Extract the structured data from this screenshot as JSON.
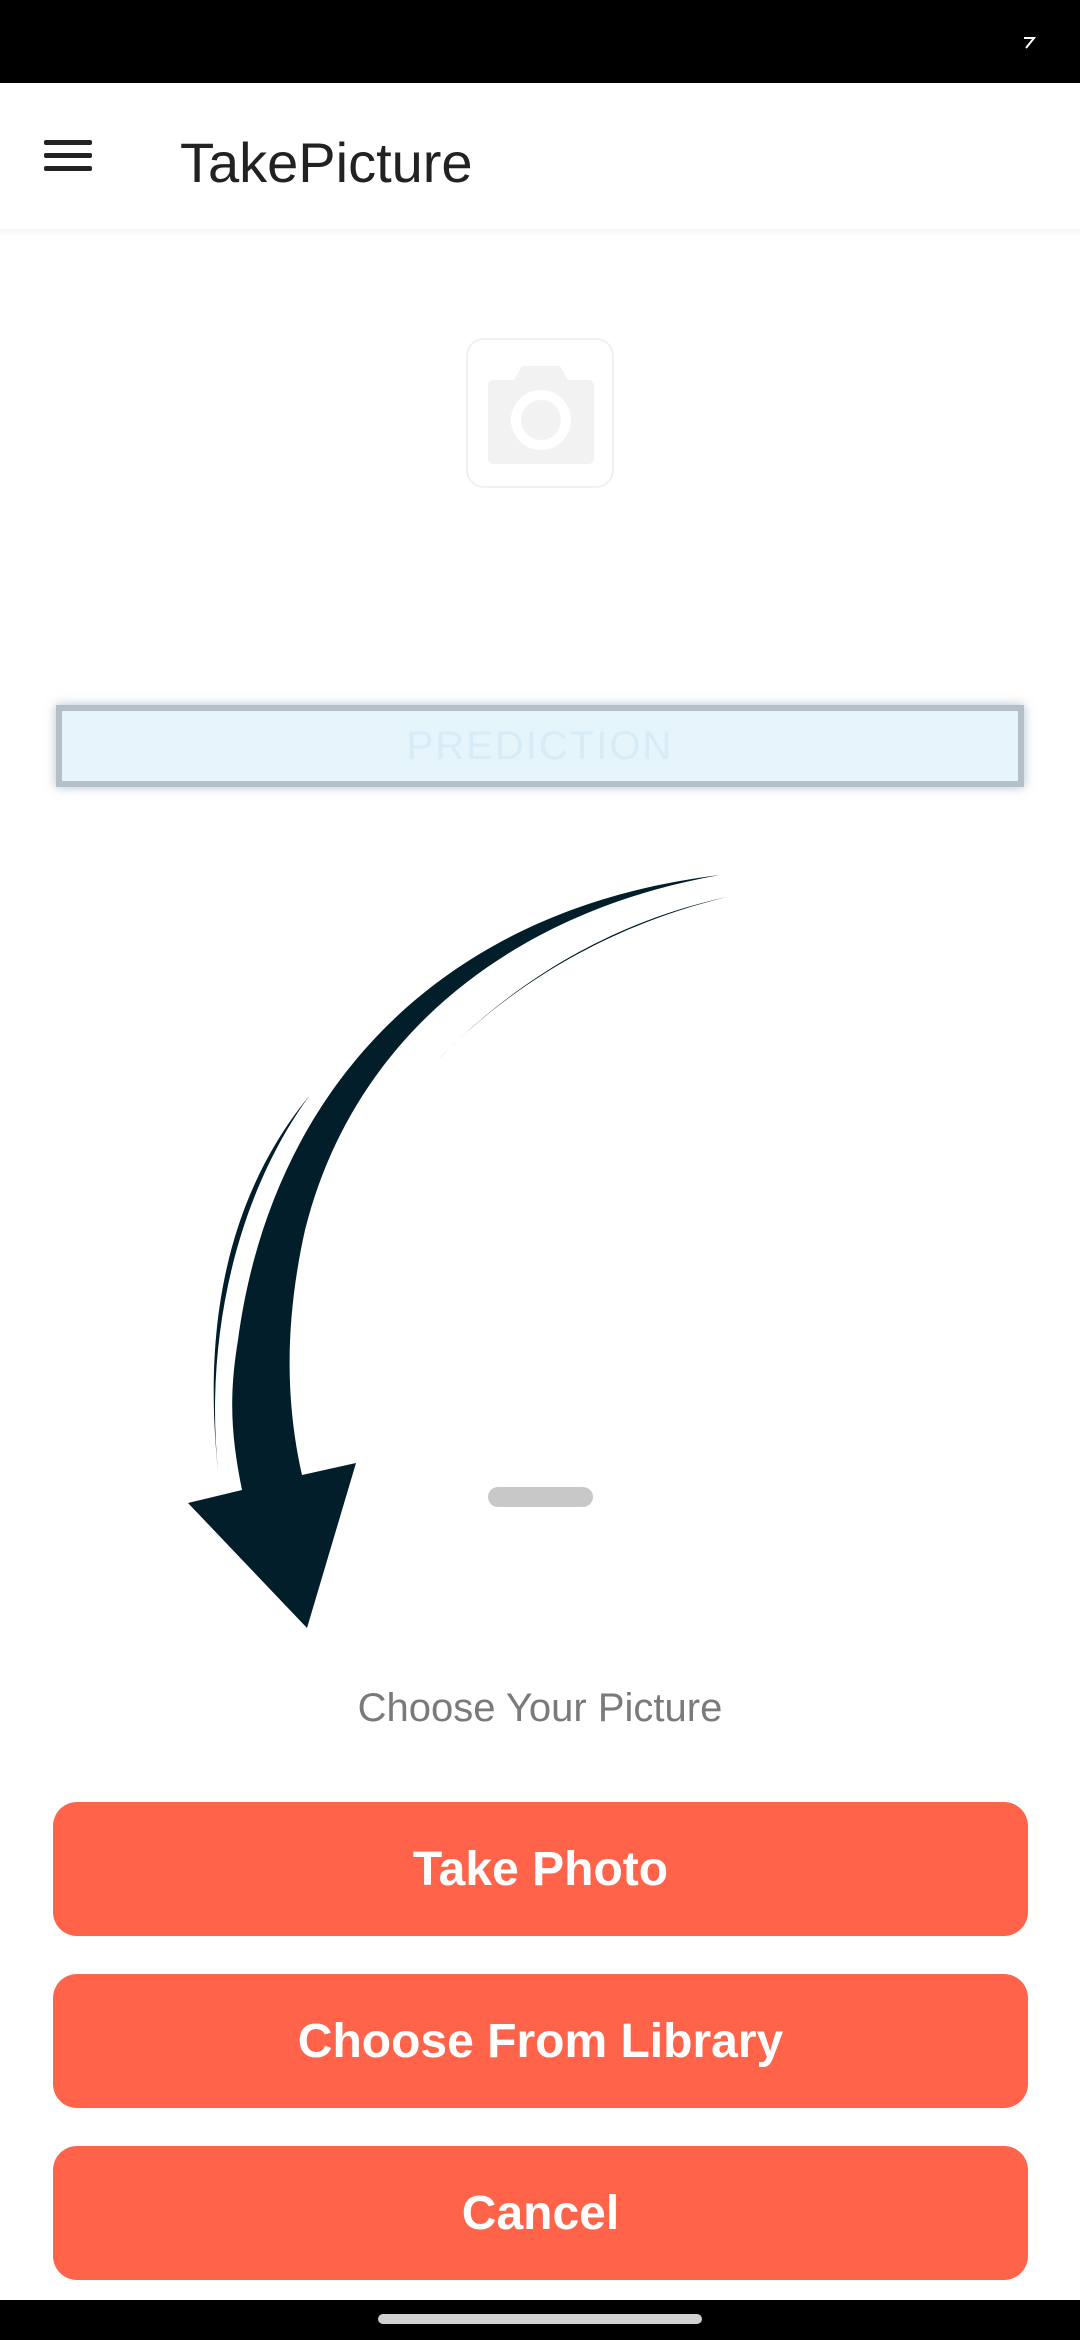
{
  "app_bar": {
    "title": "TakePicture"
  },
  "prediction": {
    "label": "PREDICTION"
  },
  "sheet": {
    "title": "Choose Your Picture",
    "buttons": {
      "take_photo": "Take Photo",
      "choose_library": "Choose From Library",
      "cancel": "Cancel"
    }
  },
  "icons": {
    "menu": "menu-icon",
    "camera": "camera-icon",
    "arrow": "curved-arrow-icon",
    "status": "signal-icon"
  },
  "colors": {
    "accent": "#ff644a",
    "arrow": "#021e2b",
    "prediction_bg": "#e6f4fc"
  }
}
